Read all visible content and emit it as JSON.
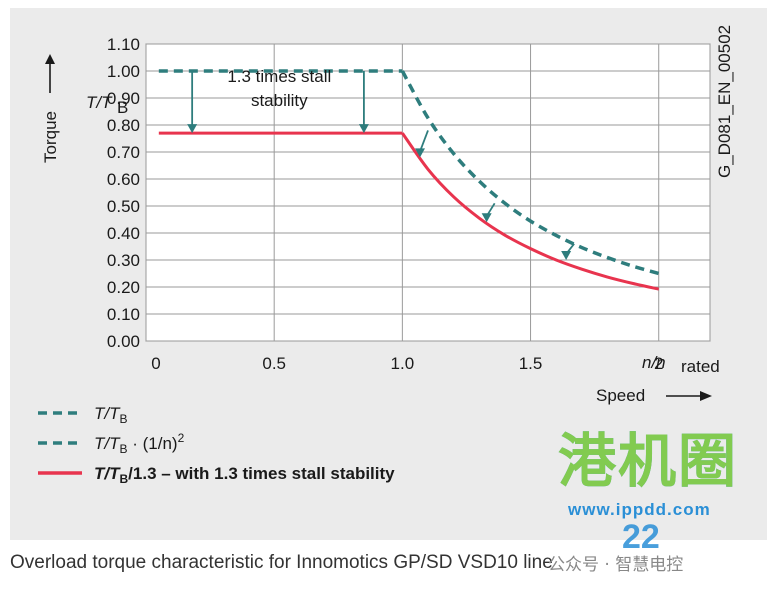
{
  "chart_data": {
    "type": "line",
    "title": "",
    "x": [
      0,
      1.0,
      1.1,
      1.2,
      1.3,
      1.4,
      1.5,
      1.6,
      1.7,
      1.8,
      1.9,
      2.0
    ],
    "xlim": [
      0,
      2.2
    ],
    "ylim": [
      0,
      1.1
    ],
    "x_ticks": [
      "0",
      "0.5",
      "1.0",
      "1.5",
      "2"
    ],
    "y_ticks": [
      "0.00",
      "0.10",
      "0.20",
      "0.30",
      "0.40",
      "0.50",
      "0.60",
      "0.70",
      "0.80",
      "0.90",
      "1.00",
      "1.10"
    ],
    "x_tick_values": [
      0,
      0.5,
      1.0,
      1.5,
      2.0
    ],
    "y_tick_values": [
      0,
      0.1,
      0.2,
      0.3,
      0.4,
      0.5,
      0.6,
      0.7,
      0.8,
      0.9,
      1.0,
      1.1
    ],
    "ylabel_main": "Torque",
    "ylabel_sub": "T/T",
    "ylabel_sub_index": "B",
    "xlabel_ratio": "n/n",
    "xlabel_ratio_index": "rated",
    "xlabel_main": "Speed",
    "grid": true,
    "series": [
      {
        "name": "T/TB",
        "x_start": 0.05,
        "x_end": 1.0,
        "value": 1.0,
        "color": "#2e7d7d",
        "style": "dashed"
      },
      {
        "name": "T/TB · (1/n)2",
        "x": [
          1.0,
          1.1,
          1.2,
          1.3,
          1.4,
          1.5,
          1.6,
          1.7,
          1.8,
          1.9,
          2.0
        ],
        "values": [
          1.0,
          0.826,
          0.694,
          0.592,
          0.51,
          0.444,
          0.391,
          0.346,
          0.309,
          0.277,
          0.25
        ],
        "color": "#2e7d7d",
        "style": "dashed"
      },
      {
        "name": "T/TB/1.3 – with 1.3 times stall stability",
        "x": [
          0.05,
          1.0,
          1.1,
          1.2,
          1.3,
          1.4,
          1.5,
          1.6,
          1.7,
          1.8,
          1.9,
          2.0
        ],
        "values": [
          0.77,
          0.77,
          0.636,
          0.534,
          0.455,
          0.392,
          0.342,
          0.3,
          0.266,
          0.237,
          0.213,
          0.192
        ],
        "color": "#e8344e",
        "style": "solid"
      }
    ],
    "annotation_lines": [
      "1.3 times stall",
      "stability"
    ],
    "arrows_down": [
      {
        "x": 0.18,
        "from": 1.0,
        "to": 0.77
      },
      {
        "x": 0.85,
        "from": 1.0,
        "to": 0.77
      },
      {
        "x": 1.1,
        "from": 0.78,
        "to": 0.68
      },
      {
        "x": 1.36,
        "from": 0.51,
        "to": 0.44
      },
      {
        "x": 1.67,
        "from": 0.36,
        "to": 0.3
      }
    ],
    "side_id": "G_D081_EN_00502",
    "legend": [
      {
        "sym": "T/T",
        "sub": "B",
        "rest": "",
        "sup": "",
        "color": "#2e7d7d",
        "style": "dashed"
      },
      {
        "sym": "T/T",
        "sub": "B",
        "rest": " · (1/n)",
        "sup": "2",
        "color": "#2e7d7d",
        "style": "dashed"
      },
      {
        "sym": "T/T",
        "sub": "B",
        "rest": "/1.3 – with 1.3 times stall stability",
        "sup": "",
        "color": "#e8344e",
        "style": "solid",
        "bold": true
      }
    ]
  },
  "caption": "Overload torque characteristic for Innomotics GP/SD VSD10 line",
  "watermark": {
    "brand": "港机圈",
    "url": "www.ippdd.com",
    "number": "22",
    "wechat": "公众号 · 智慧电控"
  }
}
